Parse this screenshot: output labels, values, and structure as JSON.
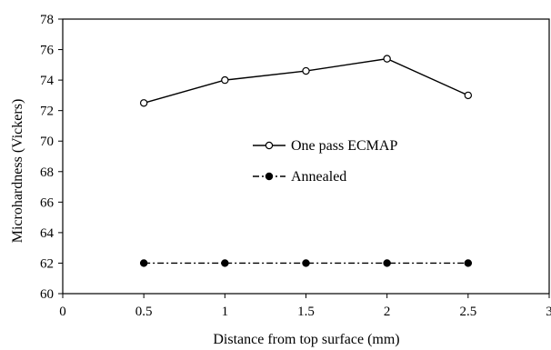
{
  "chart_data": {
    "type": "line",
    "xlabel": "Distance from top surface (mm)",
    "ylabel": "Microhardness (Vickers)",
    "xlim": [
      0,
      3
    ],
    "ylim": [
      60,
      78
    ],
    "x_ticks": [
      0,
      0.5,
      1,
      1.5,
      2,
      2.5,
      3
    ],
    "x_tick_labels": [
      "0",
      "0.5",
      "1",
      "1.5",
      "2",
      "2.5",
      "3"
    ],
    "y_ticks": [
      60,
      62,
      64,
      66,
      68,
      70,
      72,
      74,
      76,
      78
    ],
    "y_tick_labels": [
      "60",
      "62",
      "64",
      "66",
      "68",
      "70",
      "72",
      "74",
      "76",
      "78"
    ],
    "grid": false,
    "legend_position": "center-right",
    "series": [
      {
        "name": "One pass ECMAP",
        "x": [
          0.5,
          1,
          1.5,
          2,
          2.5
        ],
        "y": [
          72.5,
          74.0,
          74.6,
          75.4,
          73.0
        ],
        "marker": "open-circle",
        "line_style": "solid",
        "color": "#000000"
      },
      {
        "name": "Annealed",
        "x": [
          0.5,
          1,
          1.5,
          2,
          2.5
        ],
        "y": [
          62.0,
          62.0,
          62.0,
          62.0,
          62.0
        ],
        "marker": "filled-circle",
        "line_style": "dash-dot",
        "color": "#000000"
      }
    ]
  }
}
